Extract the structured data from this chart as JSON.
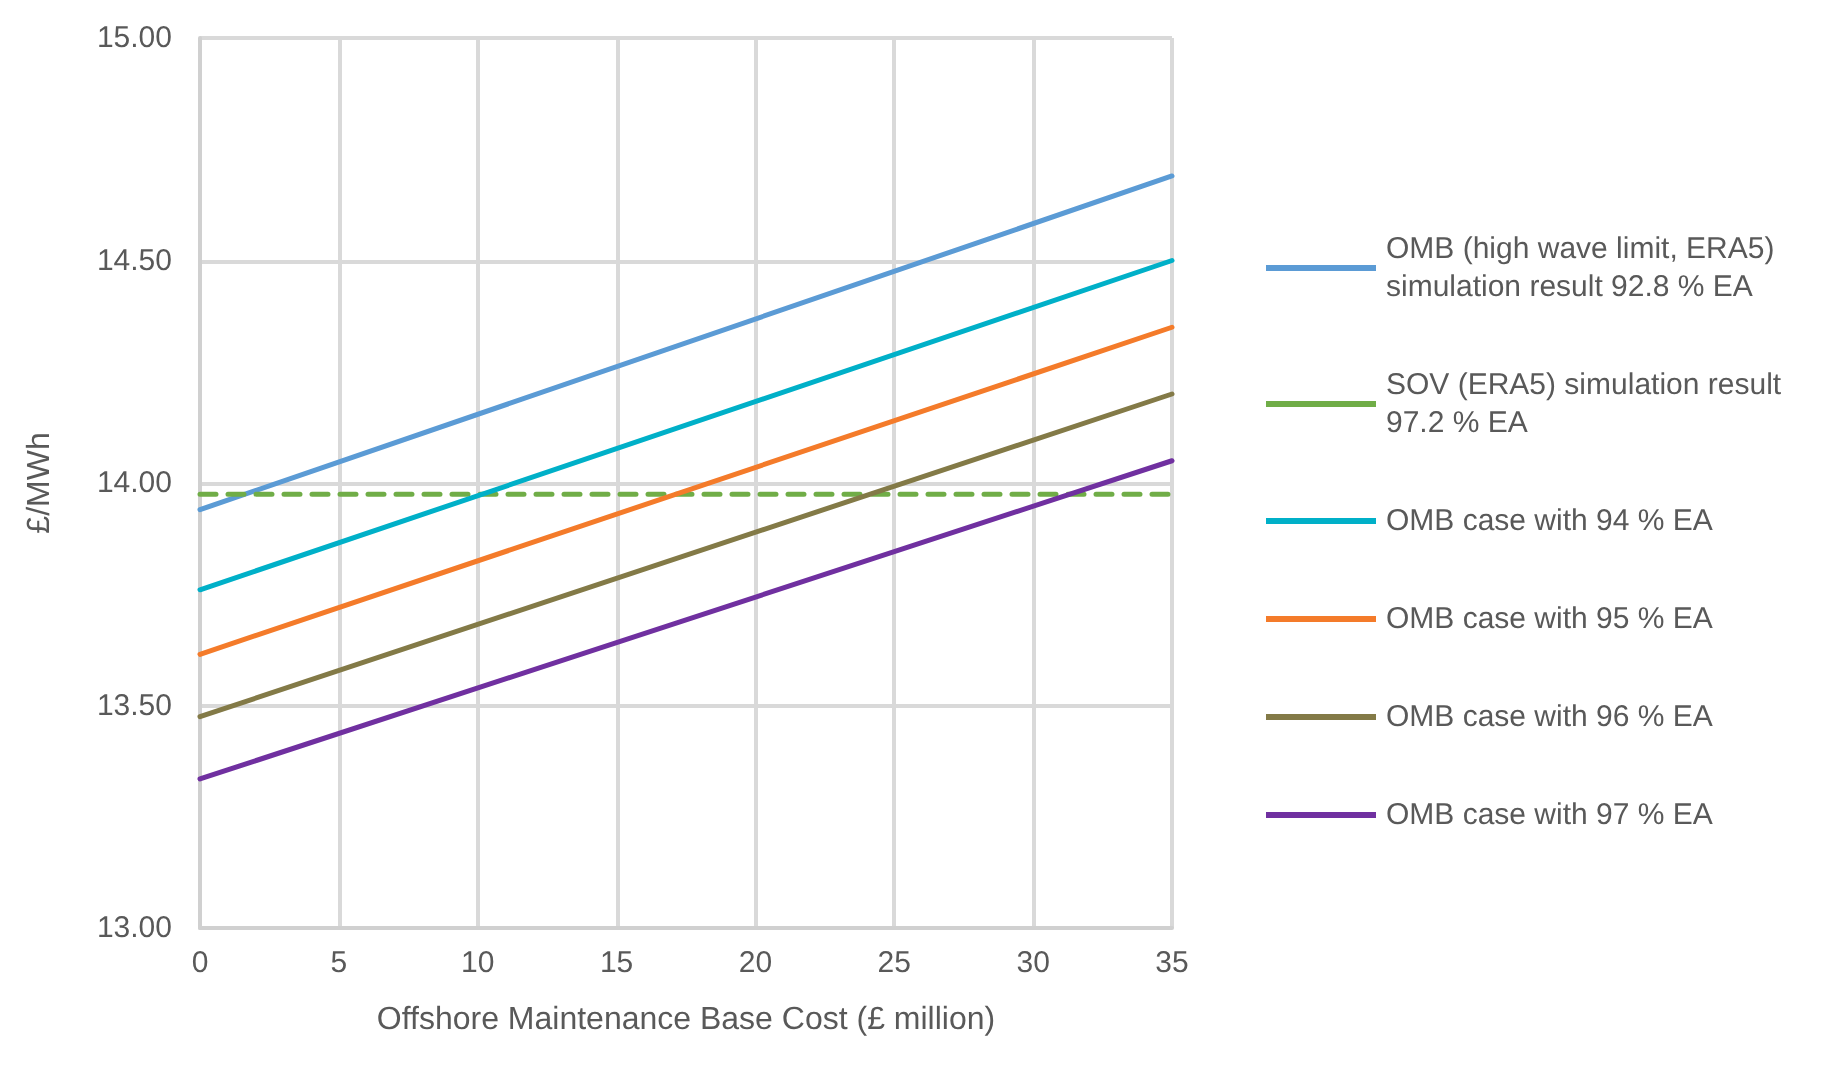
{
  "chart_data": {
    "type": "line",
    "xlabel": "Offshore Maintenance Base Cost (£ million)",
    "ylabel": "£/MWh",
    "x": [
      0,
      35
    ],
    "series": [
      {
        "name": "OMB (high wave limit, ERA5) simulation result 92.8 % EA",
        "color": "#5b9bd5",
        "values": [
          13.94,
          14.69
        ]
      },
      {
        "name": "SOV (ERA5) simulation result 97.2 % EA",
        "color": "#70ad47",
        "values": [
          13.975,
          13.975
        ],
        "line_style": "dashed"
      },
      {
        "name": "OMB case with 94 % EA",
        "color": "#00b0c8",
        "values": [
          13.76,
          14.5
        ]
      },
      {
        "name": "OMB case with 95 % EA",
        "color": "#f47b2a",
        "values": [
          13.615,
          14.35
        ]
      },
      {
        "name": "OMB case with 96 % EA",
        "color": "#837a47",
        "values": [
          13.475,
          14.2
        ]
      },
      {
        "name": "OMB case with 97 % EA",
        "color": "#7030a0",
        "values": [
          13.335,
          14.05
        ]
      }
    ],
    "xlim": [
      0,
      35
    ],
    "xticks": [
      0,
      5,
      10,
      15,
      20,
      25,
      30,
      35
    ],
    "ylim": [
      13,
      15
    ],
    "yticks": [
      {
        "value": 13,
        "label": "13.00"
      },
      {
        "value": 13.5,
        "label": "13.50"
      },
      {
        "value": 14,
        "label": "14.00"
      },
      {
        "value": 14.5,
        "label": "14.50"
      },
      {
        "value": 15,
        "label": "15.00"
      }
    ],
    "grid": true,
    "legend": "right",
    "marker": "none",
    "line_style": "solid"
  }
}
